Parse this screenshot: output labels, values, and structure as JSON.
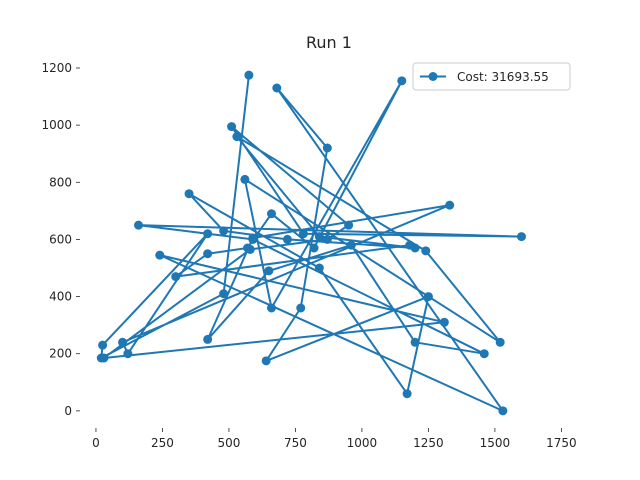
{
  "chart_data": {
    "type": "line",
    "title": "Run 1",
    "xlabel": "",
    "ylabel": "",
    "xlim": [
      -60,
      1805
    ],
    "ylim": [
      -60,
      1235
    ],
    "xticks": [
      0,
      250,
      500,
      750,
      1000,
      1250,
      1500,
      1750
    ],
    "yticks": [
      0,
      200,
      400,
      600,
      800,
      1000,
      1200
    ],
    "grid": false,
    "legend_position": "top-right",
    "color": "#1f77b4",
    "series": [
      {
        "name": "Cost: 31693.55",
        "x": [
          575,
          480,
          20,
          25,
          420,
          120,
          100,
          1330,
          590,
          420,
          650,
          960,
          1200,
          1460,
          590,
          160,
          1600,
          780,
          510,
          950,
          870,
          580,
          30,
          1310,
          240,
          1530,
          680,
          870,
          770,
          640,
          1250,
          1170,
          840,
          350,
          480,
          720,
          1200,
          840,
          530,
          1240,
          1520,
          560,
          660,
          1150,
          820,
          660,
          570,
          420,
          300,
          1180
        ],
        "y": [
          1175,
          410,
          185,
          230,
          620,
          200,
          240,
          720,
          605,
          250,
          490,
          580,
          240,
          200,
          600,
          650,
          610,
          620,
          995,
          650,
          600,
          565,
          185,
          310,
          545,
          0,
          1130,
          920,
          360,
          175,
          400,
          60,
          500,
          760,
          630,
          600,
          570,
          610,
          960,
          560,
          240,
          810,
          360,
          1155,
          570,
          690,
          570,
          550,
          470,
          580
        ]
      }
    ]
  }
}
